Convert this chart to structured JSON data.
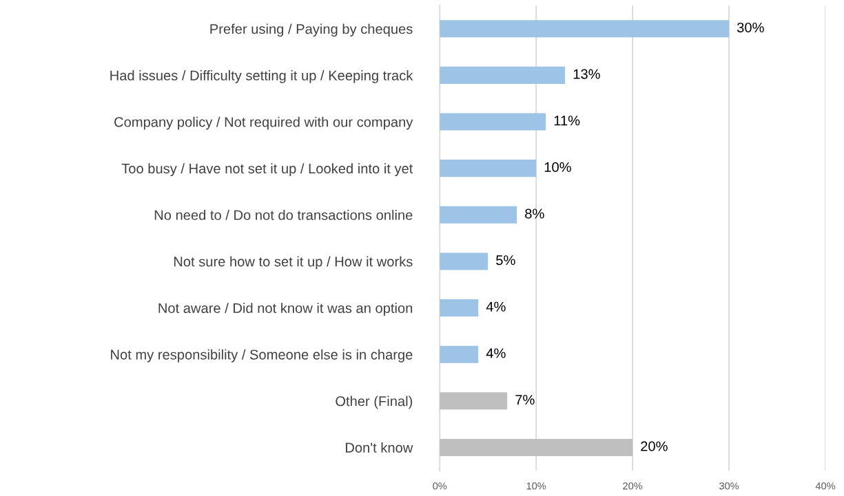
{
  "chart_data": {
    "type": "bar",
    "orientation": "horizontal",
    "categories": [
      "Prefer using / Paying by cheques",
      "Had issues / Difficulty setting it up / Keeping track",
      "Company policy / Not required with our company",
      "Too busy / Have not set it up / Looked into it yet",
      "No need to / Do not do transactions online",
      "Not sure how to set it up / How it works",
      "Not aware / Did not know it was an option",
      "Not my responsibility / Someone else is in charge",
      "Other (Final)",
      "Don't know"
    ],
    "values": [
      30,
      13,
      11,
      10,
      8,
      5,
      4,
      4,
      7,
      20
    ],
    "value_labels": [
      "30%",
      "13%",
      "11%",
      "10%",
      "8%",
      "5%",
      "4%",
      "4%",
      "7%",
      "20%"
    ],
    "colors": [
      "#9dc3e6",
      "#9dc3e6",
      "#9dc3e6",
      "#9dc3e6",
      "#9dc3e6",
      "#9dc3e6",
      "#9dc3e6",
      "#9dc3e6",
      "#bfbfbf",
      "#bfbfbf"
    ],
    "xlim": [
      0,
      40
    ],
    "xticks": [
      {
        "value": 0,
        "label": "0%"
      },
      {
        "value": 10,
        "label": "10%"
      },
      {
        "value": 20,
        "label": "20%"
      },
      {
        "value": 30,
        "label": "30%"
      },
      {
        "value": 40,
        "label": "40%"
      }
    ],
    "grid": "x",
    "legend": false
  }
}
